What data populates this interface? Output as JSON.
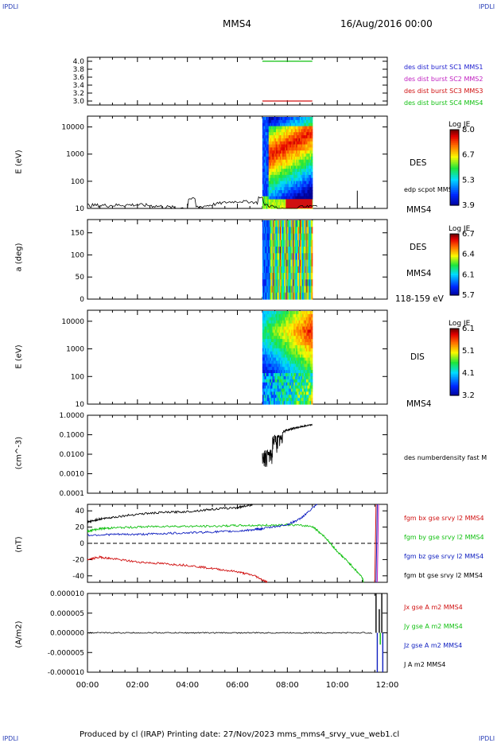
{
  "header": {
    "corner_left": "IPDLI",
    "corner_right": "IPDLI",
    "title": "MMS4",
    "date": "16/Aug/2016 00:00"
  },
  "footer": {
    "text": "Produced by cl (IRAP)   Printing date: 27/Nov/2023   mms_mms4_srvy_vue_web1.cl",
    "corner_left": "IPDLI",
    "corner_right": "IPDLI"
  },
  "colors": {
    "mms1": "#2020d0",
    "mms2": "#c020c0",
    "mms3": "#d01010",
    "mms4": "#10c010",
    "bx": "#d01010",
    "by": "#10c010",
    "bz": "#1020c0",
    "bt": "#000000"
  },
  "x_axis": {
    "ticks": [
      "00:00",
      "02:00",
      "04:00",
      "06:00",
      "08:00",
      "10:00",
      "12:00"
    ]
  },
  "chart_data": [
    {
      "type": "line",
      "panel": "burst-intervals",
      "ylim": [
        2.9,
        4.1
      ],
      "yticks": [
        "4.0",
        "3.8",
        "3.6",
        "3.4",
        "3.2",
        "3.0"
      ],
      "legend": [
        "des dist burst SC1 MMS1",
        "des dist burst SC2 MMS2",
        "des dist burst SC3 MMS3",
        "des dist burst SC4 MMS4"
      ],
      "series": [
        {
          "name": "des dist burst SC4 MMS4",
          "x": [
            "07:00",
            "09:00"
          ],
          "y": [
            4.0,
            4.0
          ]
        },
        {
          "name": "des dist burst SC3 MMS3",
          "x": [
            "07:00",
            "09:00"
          ],
          "y": [
            3.0,
            3.0
          ]
        }
      ]
    },
    {
      "type": "heatmap",
      "panel": "des-energy-spectrogram",
      "ylabel": "E (eV)",
      "yscale": "log",
      "ylim": [
        10,
        25000
      ],
      "yticks": [
        "10000",
        "1000",
        "100",
        "10"
      ],
      "label": "DES",
      "overlay_label": "edp scpot MMS4",
      "spacecraft": "MMS4",
      "colorbar": {
        "title": "Log JE",
        "ticks": [
          "8.0",
          "6.7",
          "5.3",
          "3.9"
        ]
      },
      "data_interval": [
        "07:00",
        "09:00"
      ]
    },
    {
      "type": "heatmap",
      "panel": "des-pitch-angle",
      "ylabel": "a (deg)",
      "ylim": [
        0,
        180
      ],
      "yticks": [
        "150",
        "100",
        "50",
        "0"
      ],
      "label": "DES",
      "spacecraft": "MMS4",
      "energy_range": "118-159 eV",
      "colorbar": {
        "title": "Log JE",
        "ticks": [
          "6.7",
          "6.4",
          "6.1",
          "5.7"
        ]
      },
      "data_interval": [
        "07:00",
        "09:00"
      ]
    },
    {
      "type": "heatmap",
      "panel": "dis-energy-spectrogram",
      "ylabel": "E (eV)",
      "yscale": "log",
      "ylim": [
        10,
        25000
      ],
      "yticks": [
        "10000",
        "1000",
        "100",
        "10"
      ],
      "label": "DIS",
      "spacecraft": "MMS4",
      "colorbar": {
        "title": "Log JE",
        "ticks": [
          "6.1",
          "5.1",
          "4.1",
          "3.2"
        ]
      },
      "data_interval": [
        "07:00",
        "09:00"
      ]
    },
    {
      "type": "line",
      "panel": "density",
      "ylabel": "(cm^-3)",
      "yscale": "log",
      "ylim": [
        0.0001,
        1.0
      ],
      "yticks": [
        "1.0000",
        "0.1000",
        "0.0100",
        "0.0010",
        "0.0001"
      ],
      "legend": [
        "des numberdensity fast M"
      ],
      "series": [
        {
          "name": "des numberdensity fast M",
          "x": [
            7.0,
            7.1,
            7.2,
            7.3,
            7.4,
            7.5,
            7.6,
            7.7,
            7.8,
            8.0,
            8.2,
            8.4,
            8.6,
            8.8,
            9.0
          ],
          "y": [
            0.005,
            0.003,
            0.008,
            0.002,
            0.01,
            0.02,
            0.06,
            0.15,
            0.12,
            0.15,
            0.18,
            0.2,
            0.22,
            0.25,
            0.3
          ]
        }
      ]
    },
    {
      "type": "line",
      "panel": "magnetic-field",
      "ylabel": "(nT)",
      "ylim": [
        -48,
        48
      ],
      "yticks": [
        "40",
        "20",
        "0",
        "-20",
        "-40"
      ],
      "legend": [
        "fgm bx gse srvy l2 MMS4",
        "fgm by gse srvy l2 MMS4",
        "fgm bz gse srvy l2 MMS4",
        "fgm bt gse srvy l2 MMS4"
      ],
      "series": [
        {
          "name": "fgm bx gse srvy l2 MMS4",
          "x": [
            0,
            0.5,
            1,
            2,
            3,
            4,
            5,
            6,
            6.7,
            7.2
          ],
          "y": [
            -20,
            -17,
            -19,
            -23,
            -25,
            -27,
            -31,
            -35,
            -40,
            -48
          ]
        },
        {
          "name": "fgm by gse srvy l2 MMS4",
          "x": [
            0,
            0.5,
            1,
            2,
            3,
            4,
            5,
            6,
            7,
            8,
            9,
            9.5,
            10,
            10.5,
            11,
            11.05
          ],
          "y": [
            15,
            18,
            19,
            20,
            21,
            21,
            21,
            22,
            22,
            23,
            21,
            8,
            -10,
            -25,
            -42,
            -48
          ]
        },
        {
          "name": "fgm bz gse srvy l2 MMS4",
          "x": [
            0,
            1,
            2,
            3,
            4,
            5,
            6,
            6.7,
            7,
            8,
            8.5,
            9.2
          ],
          "y": [
            10,
            11,
            11,
            12,
            13,
            14,
            15,
            17,
            18,
            23,
            30,
            48
          ]
        },
        {
          "name": "fgm bt gse srvy l2 MMS4",
          "x": [
            0,
            0.5,
            1,
            2,
            3,
            4,
            5,
            6,
            6.6
          ],
          "y": [
            26,
            30,
            32,
            36,
            38,
            39,
            42,
            44,
            48
          ]
        }
      ]
    },
    {
      "type": "line",
      "panel": "current-density",
      "ylabel": "(A/m2)",
      "ylim": [
        -1e-05,
        1e-05
      ],
      "yticks": [
        "0.000010",
        "0.000005",
        "0.000000",
        "-0.000005",
        "-0.000010"
      ],
      "legend": [
        "Jx gse A m2 MMS4",
        "Jy gse A m2 MMS4",
        "Jz gse A m2 MMS4",
        "J A m2 MMS4"
      ],
      "series": [
        {
          "name": "J A m2 MMS4",
          "x": [
            0,
            11.4,
            11.5,
            11.6,
            11.7,
            12
          ],
          "y": [
            0,
            0,
            1e-05,
            3e-06,
            1e-05,
            0
          ]
        },
        {
          "name": "Jz gse A m2 MMS4",
          "x": [
            0,
            11.4,
            11.5,
            11.7,
            12
          ],
          "y": [
            0,
            0,
            -1e-05,
            -1e-05,
            0
          ]
        },
        {
          "name": "Jy gse A m2 MMS4",
          "x": [
            0,
            11.5,
            11.7,
            12
          ],
          "y": [
            0,
            -3e-06,
            2e-06,
            0
          ]
        }
      ]
    }
  ]
}
